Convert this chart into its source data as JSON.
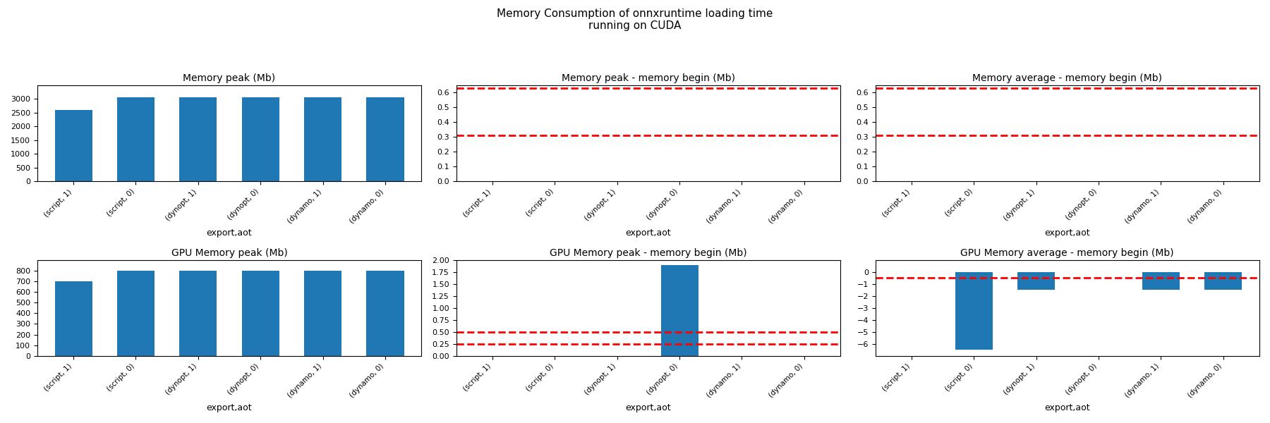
{
  "suptitle": "Memory Consumption of onnxruntime loading time\nrunning on CUDA",
  "categories": [
    "(script, 1)",
    "(script, 0)",
    "(dynopt, 1)",
    "(dynopt, 0)",
    "(dynamo, 1)",
    "(dynamo, 0)"
  ],
  "xlabel": "export,aot",
  "bar_color": "#1f77b4",
  "plots": [
    {
      "title": "Memory peak (Mb)",
      "values": [
        2600,
        3060,
        3060,
        3060,
        3060,
        3060
      ],
      "hlines": [],
      "ylim": [
        0,
        3500
      ],
      "yticks": [
        0,
        500,
        1000,
        1500,
        2000,
        2500,
        3000
      ]
    },
    {
      "title": "Memory peak - memory begin (Mb)",
      "values": [
        0.0,
        0.0,
        0.0,
        0.0,
        0.0,
        0.0
      ],
      "hlines": [
        0.63,
        0.31
      ],
      "ylim": [
        0.0,
        0.65
      ],
      "yticks": [
        0.0,
        0.1,
        0.2,
        0.3,
        0.4,
        0.5,
        0.6
      ]
    },
    {
      "title": "Memory average - memory begin (Mb)",
      "values": [
        0.0,
        0.0,
        0.0,
        0.0,
        0.0,
        0.0
      ],
      "hlines": [
        0.63,
        0.31
      ],
      "ylim": [
        0.0,
        0.65
      ],
      "yticks": [
        0.0,
        0.1,
        0.2,
        0.3,
        0.4,
        0.5,
        0.6
      ]
    },
    {
      "title": "GPU Memory peak (Mb)",
      "values": [
        700,
        800,
        800,
        800,
        800,
        800
      ],
      "hlines": [],
      "ylim": [
        0,
        900
      ],
      "yticks": [
        0,
        100,
        200,
        300,
        400,
        500,
        600,
        700,
        800
      ]
    },
    {
      "title": "GPU Memory peak - memory begin (Mb)",
      "values": [
        0.0,
        0.0,
        0.0,
        1.9,
        0.0,
        0.0
      ],
      "hlines": [
        0.5,
        0.25
      ],
      "ylim": [
        0.0,
        2.0
      ],
      "yticks": [
        0.0,
        0.25,
        0.5,
        0.75,
        1.0,
        1.25,
        1.5,
        1.75,
        2.0
      ]
    },
    {
      "title": "GPU Memory average - memory begin (Mb)",
      "values": [
        0.0,
        -6.5,
        -1.5,
        0.0,
        -1.5,
        -1.5
      ],
      "hlines": [
        -0.5
      ],
      "ylim": [
        -7,
        1
      ],
      "yticks": [
        -6,
        -5,
        -4,
        -3,
        -2,
        -1,
        0
      ]
    }
  ]
}
